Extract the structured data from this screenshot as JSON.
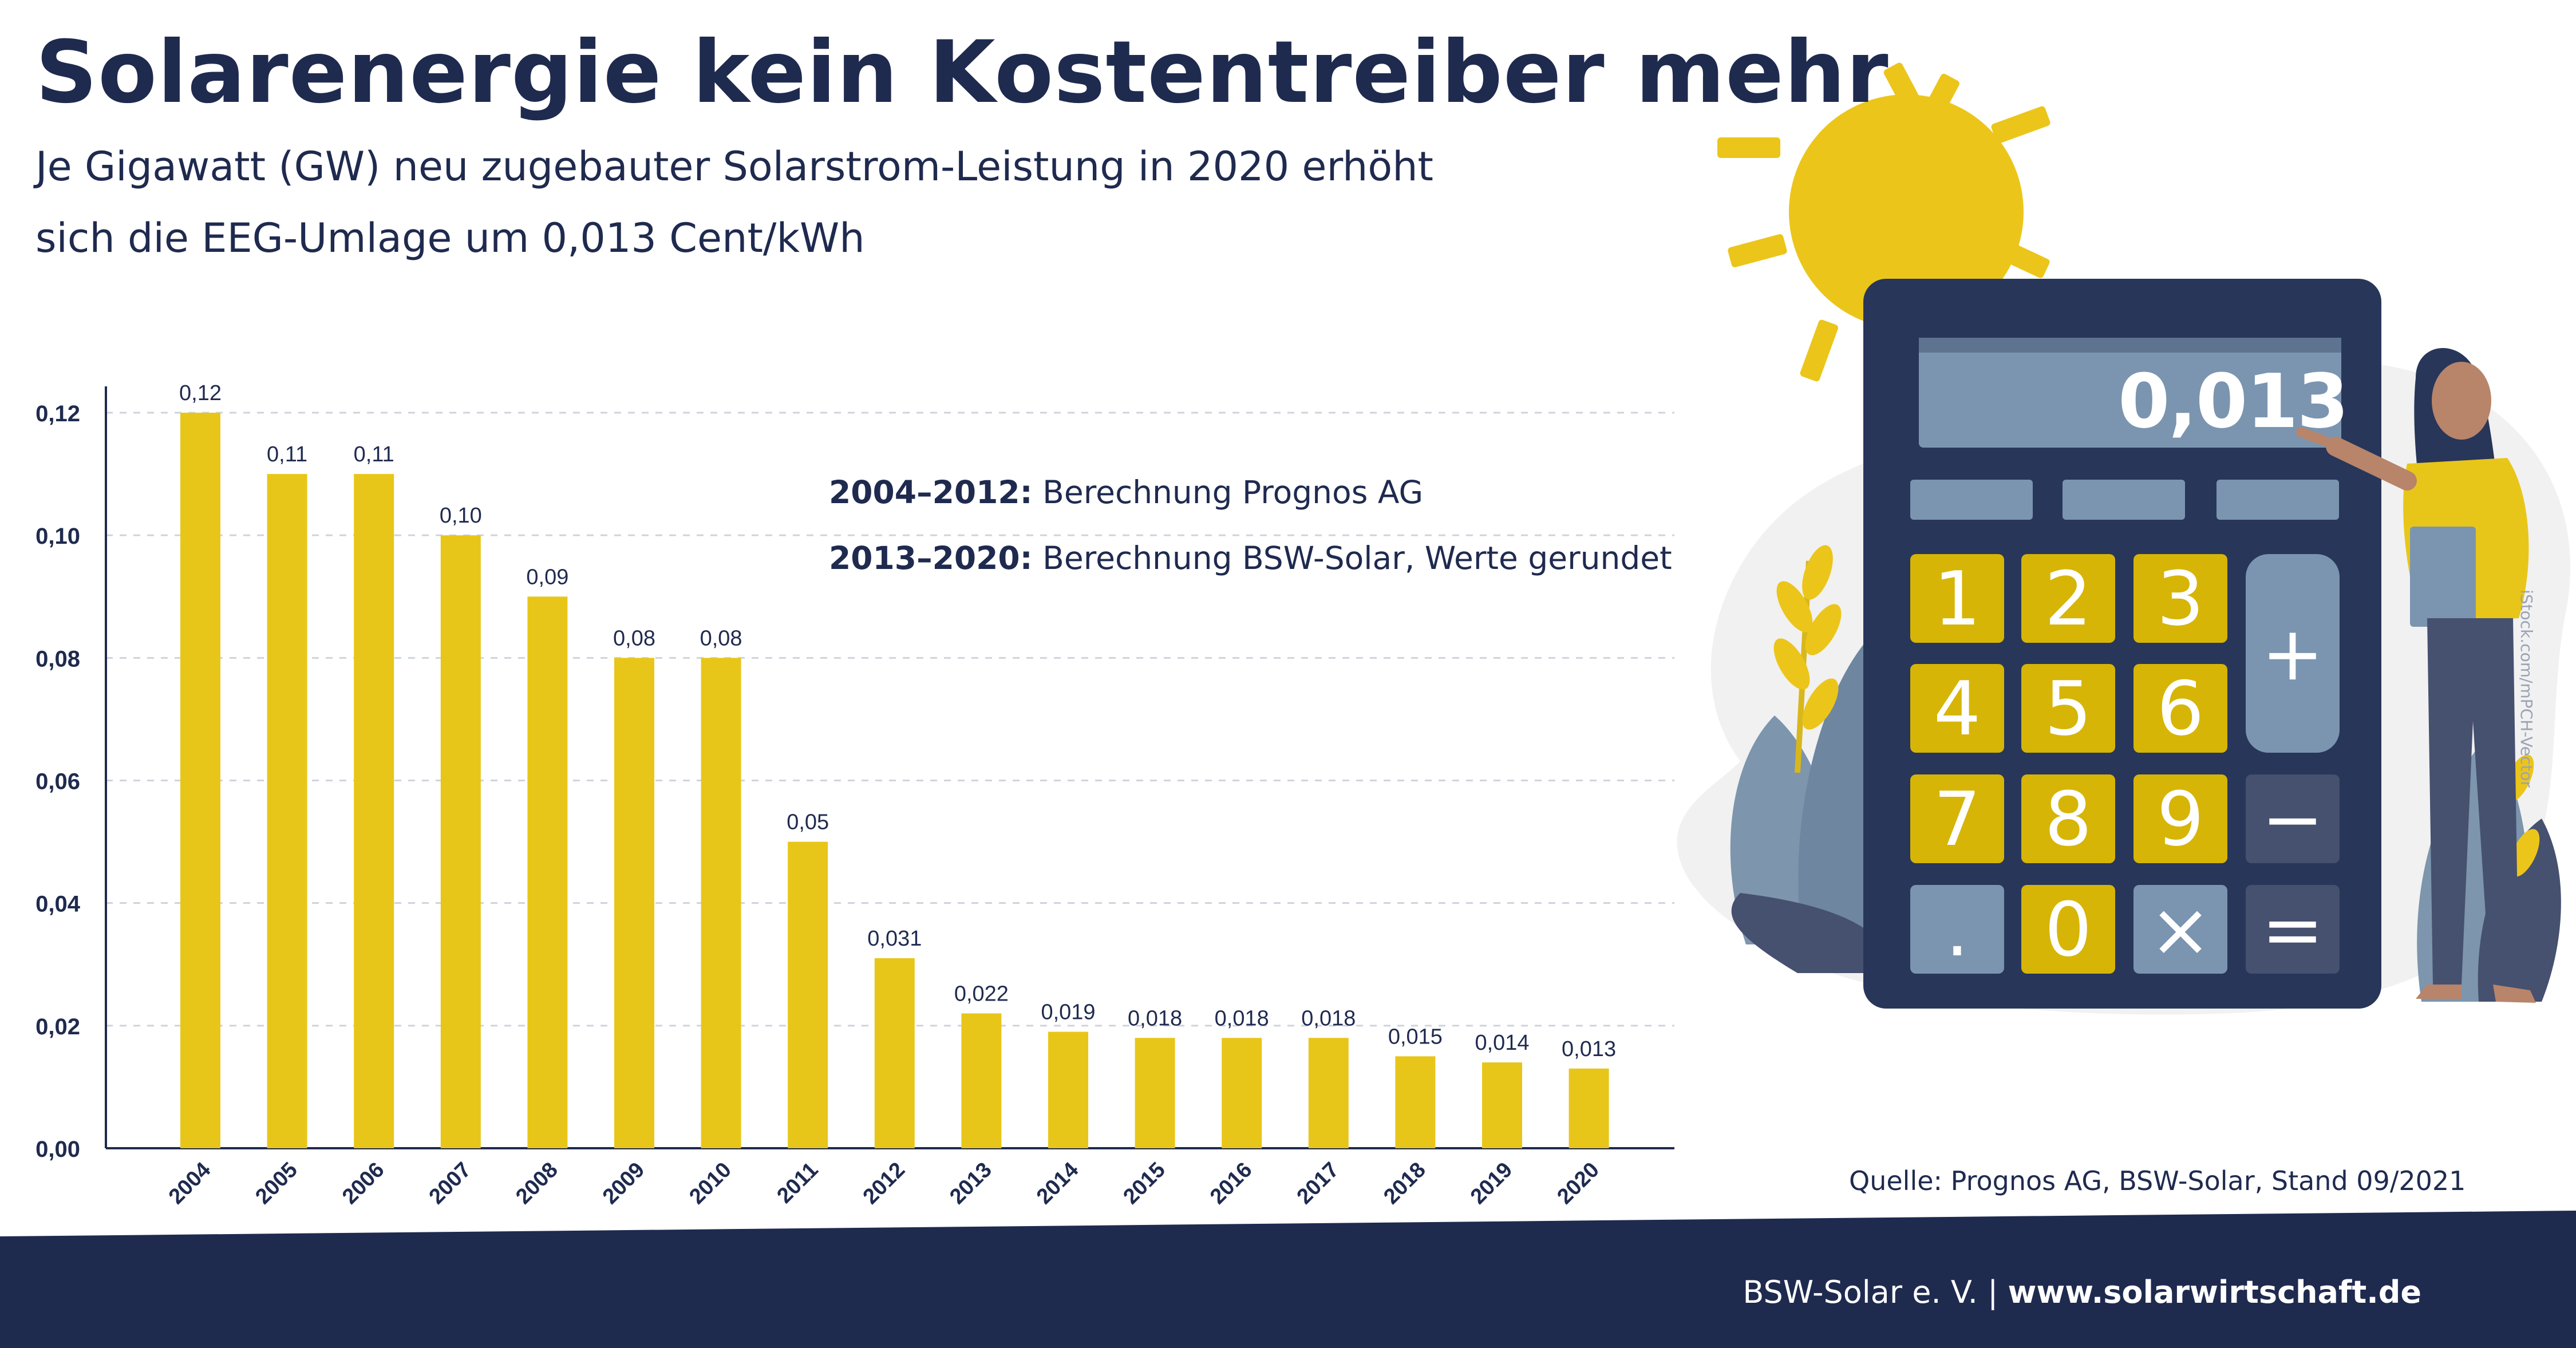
{
  "header": {
    "title": "Solarenergie kein Kostentreiber mehr",
    "subtitle_line1": "Je Gigawatt (GW) neu zugebauter Solarstrom-Leistung in 2020 erhöht",
    "subtitle_line2": "sich die EEG-Umlage um 0,013 Cent/kWh"
  },
  "notes": {
    "note1_bold": "2004–2012:",
    "note1_text": " Berechnung Prognos AG",
    "note2_bold": "2013–2020:",
    "note2_text": " Berechnung BSW-Solar, Werte gerundet"
  },
  "source": "Quelle: Prognos AG, BSW-Solar, Stand 09/2021",
  "footer": {
    "org": "BSW-Solar e. V. | ",
    "url": "www.solarwirtschaft.de"
  },
  "credit": "iStock.com/mPCH-Vector",
  "calculator": {
    "display": "0,013",
    "keys": [
      "1",
      "2",
      "3",
      "+",
      "4",
      "5",
      "6",
      "7",
      "8",
      "9",
      "−",
      ".",
      "0",
      "×",
      "="
    ]
  },
  "colors": {
    "navy": "#1f2a4f",
    "bar_yellow": "#e8c619",
    "sun_yellow": "#ecc51a",
    "key_yellow": "#d6b506",
    "key_grey": "#7b95b0"
  },
  "chart_data": {
    "type": "bar",
    "title": "",
    "xlabel": "",
    "ylabel": "",
    "ylim": [
      0,
      0.12
    ],
    "y_ticks": [
      "0,00",
      "0,02",
      "0,04",
      "0,06",
      "0,08",
      "0,10",
      "0,12"
    ],
    "grid": "dashed horizontal",
    "categories": [
      "2004",
      "2005",
      "2006",
      "2007",
      "2008",
      "2009",
      "2010",
      "2011",
      "2012",
      "2013",
      "2014",
      "2015",
      "2016",
      "2017",
      "2018",
      "2019",
      "2020"
    ],
    "values": [
      0.12,
      0.11,
      0.11,
      0.1,
      0.09,
      0.08,
      0.08,
      0.05,
      0.031,
      0.022,
      0.019,
      0.018,
      0.018,
      0.018,
      0.015,
      0.014,
      0.013
    ],
    "value_labels": [
      "0,12",
      "0,11",
      "0,11",
      "0,10",
      "0,09",
      "0,08",
      "0,08",
      "0,05",
      "0,031",
      "0,022",
      "0,019",
      "0,018",
      "0,018",
      "0,018",
      "0,015",
      "0,014",
      "0,013"
    ]
  }
}
